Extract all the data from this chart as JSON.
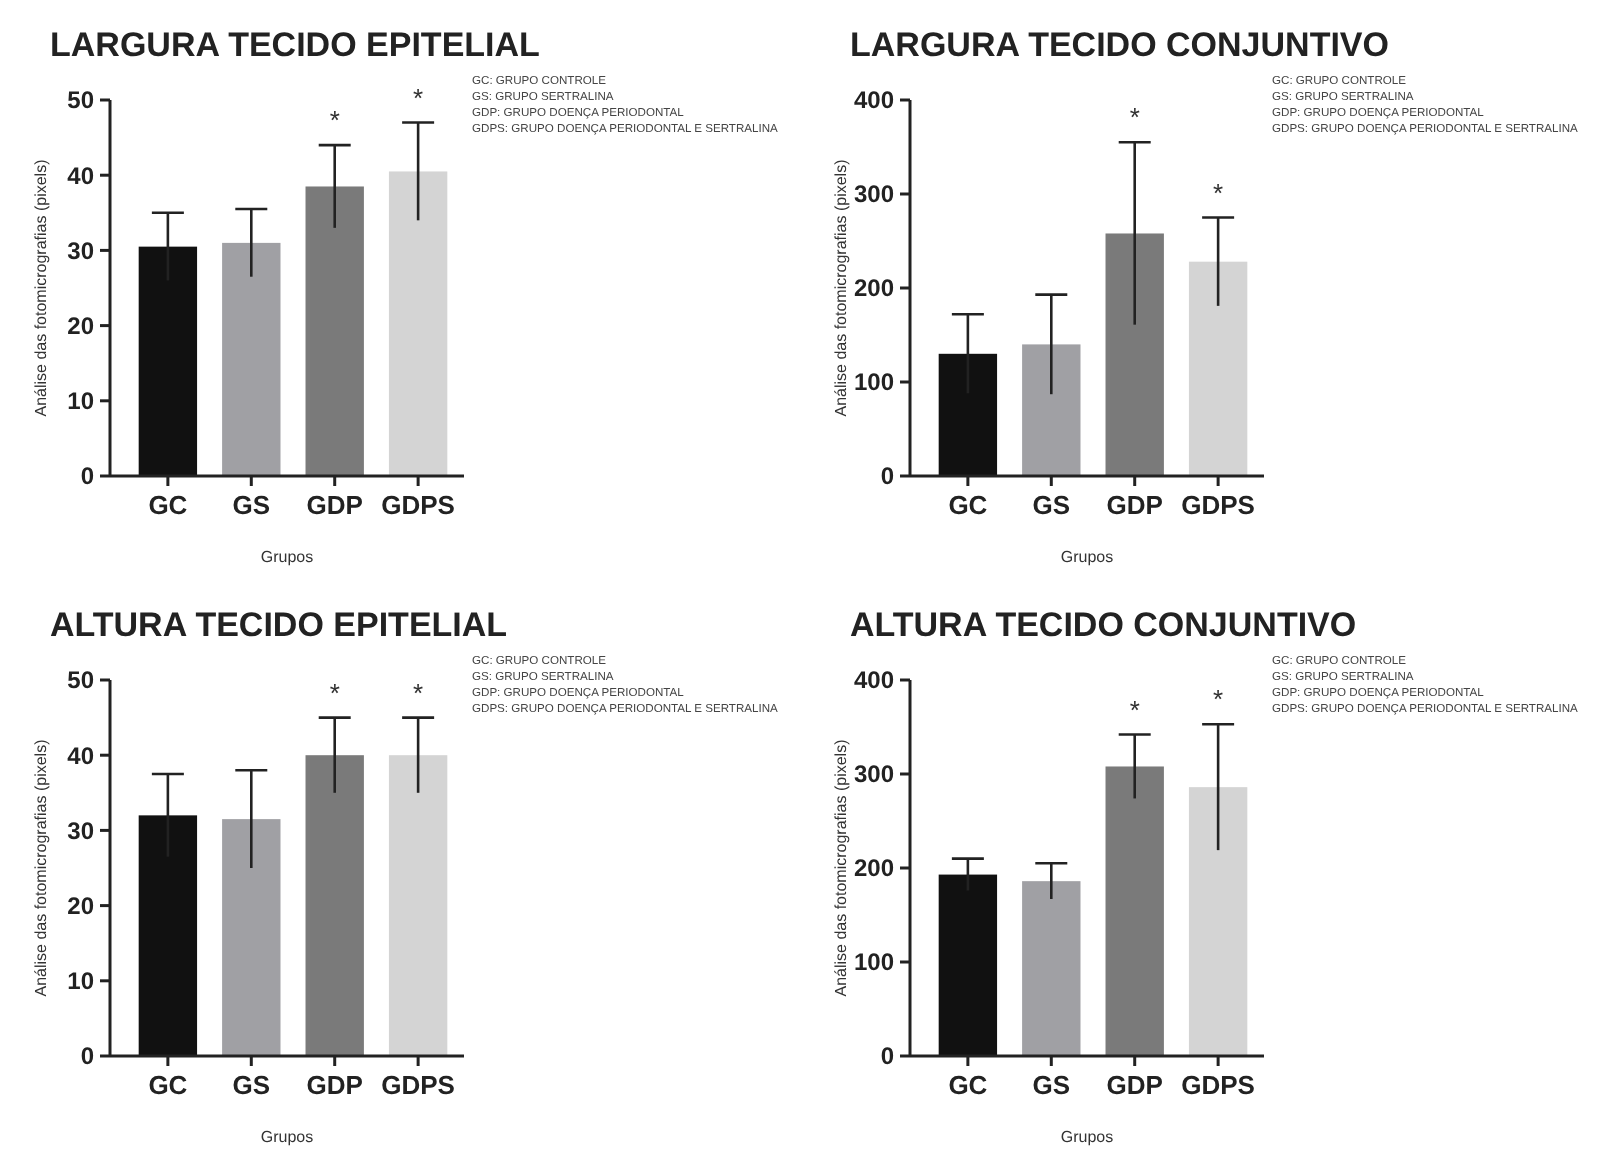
{
  "chart_data": [
    {
      "type": "bar",
      "title": "LARGURA TECIDO EPITELIAL",
      "xlabel": "Grupos",
      "ylabel": "Análise das fotomicrografias (pixels)",
      "categories": [
        "GC",
        "GS",
        "GDP",
        "GDPS"
      ],
      "values": [
        30.5,
        31,
        38.5,
        40.5
      ],
      "errors": [
        4.5,
        4.5,
        5.5,
        6.5
      ],
      "colors": [
        "#111111",
        "#a0a0a4",
        "#7a7a7a",
        "#d4d4d4"
      ],
      "ylim": [
        0,
        50
      ],
      "yticks": [
        0,
        10,
        20,
        30,
        40,
        50
      ],
      "grid": false,
      "annotations": [
        {
          "text": "*",
          "x": "GDP",
          "y": 44
        },
        {
          "text": "*",
          "x": "GDPS",
          "y": 47
        },
        "GC: GRUPO CONTROLE",
        "GS: GRUPO SERTRALINA",
        "GDP: GRUPO DOENÇA PERIODONTAL",
        "GDPS: GRUPO DOENÇA PERIODONTAL E SERTRALINA"
      ]
    },
    {
      "type": "bar",
      "title": "LARGURA TECIDO CONJUNTIVO",
      "xlabel": "Grupos",
      "ylabel": "Análise das fotomicrografias (pixels)",
      "categories": [
        "GC",
        "GS",
        "GDP",
        "GDPS"
      ],
      "values": [
        130,
        140,
        258,
        228
      ],
      "errors": [
        42,
        53,
        97,
        47
      ],
      "colors": [
        "#111111",
        "#a0a0a4",
        "#7a7a7a",
        "#d4d4d4"
      ],
      "ylim": [
        0,
        400
      ],
      "yticks": [
        0,
        100,
        200,
        300,
        400
      ],
      "grid": false,
      "annotations": [
        {
          "text": "*",
          "x": "GDP",
          "y": 355
        },
        {
          "text": "*",
          "x": "GDPS",
          "y": 275
        },
        "GC: GRUPO CONTROLE",
        "GS: GRUPO SERTRALINA",
        "GDP: GRUPO DOENÇA PERIODONTAL",
        "GDPS: GRUPO DOENÇA PERIODONTAL E SERTRALINA"
      ]
    },
    {
      "type": "bar",
      "title": "ALTURA TECIDO EPITELIAL",
      "xlabel": "Grupos",
      "ylabel": "Análise das fotomicrografias (pixels)",
      "categories": [
        "GC",
        "GS",
        "GDP",
        "GDPS"
      ],
      "values": [
        32,
        31.5,
        40,
        40
      ],
      "errors": [
        5.5,
        6.5,
        5,
        5
      ],
      "colors": [
        "#111111",
        "#a0a0a4",
        "#7a7a7a",
        "#d4d4d4"
      ],
      "ylim": [
        0,
        50
      ],
      "yticks": [
        0,
        10,
        20,
        30,
        40,
        50
      ],
      "grid": false,
      "annotations": [
        {
          "text": "*",
          "x": "GDP",
          "y": 45
        },
        {
          "text": "*",
          "x": "GDPS",
          "y": 45
        },
        "GC: GRUPO CONTROLE",
        "GS: GRUPO SERTRALINA",
        "GDP: GRUPO DOENÇA PERIODONTAL",
        "GDPS: GRUPO DOENÇA PERIODONTAL E SERTRALINA"
      ]
    },
    {
      "type": "bar",
      "title": "ALTURA TECIDO CONJUNTIVO",
      "xlabel": "Grupos",
      "ylabel": "Análise das fotomicrografias (pixels)",
      "categories": [
        "GC",
        "GS",
        "GDP",
        "GDPS"
      ],
      "values": [
        193,
        186,
        308,
        286
      ],
      "errors": [
        17,
        19,
        34,
        67
      ],
      "colors": [
        "#111111",
        "#a0a0a4",
        "#7a7a7a",
        "#d4d4d4"
      ],
      "ylim": [
        0,
        400
      ],
      "yticks": [
        0,
        100,
        200,
        300,
        400
      ],
      "grid": false,
      "annotations": [
        {
          "text": "*",
          "x": "GDP",
          "y": 342
        },
        {
          "text": "*",
          "x": "GDPS",
          "y": 353
        },
        "GC: GRUPO CONTROLE",
        "GS: GRUPO SERTRALINA",
        "GDP: GRUPO DOENÇA PERIODONTAL",
        "GDPS: GRUPO DOENÇA PERIODONTAL E SERTRALINA"
      ]
    }
  ]
}
